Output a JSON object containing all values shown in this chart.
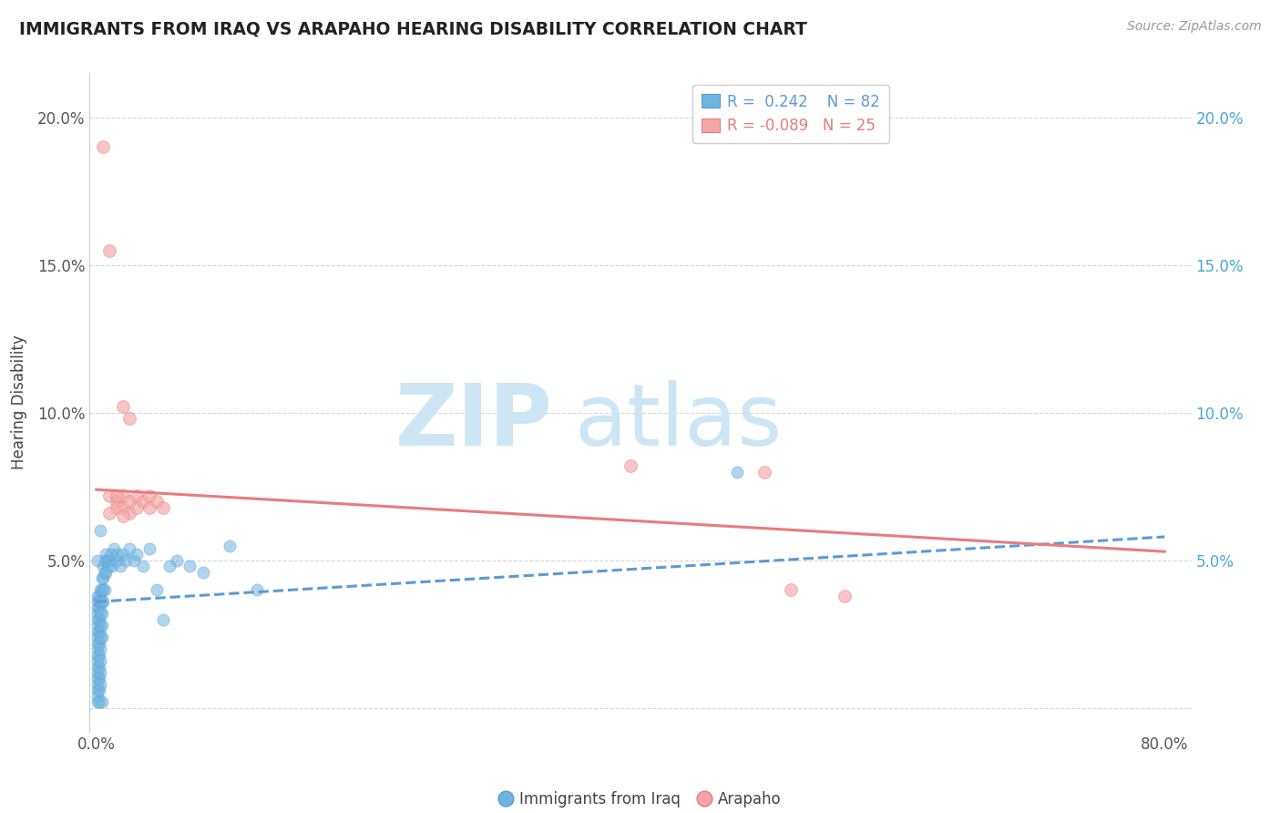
{
  "title": "IMMIGRANTS FROM IRAQ VS ARAPAHO HEARING DISABILITY CORRELATION CHART",
  "source": "Source: ZipAtlas.com",
  "ylabel": "Hearing Disability",
  "legend_iraq_R": "0.242",
  "legend_iraq_N": "82",
  "legend_arapaho_R": "-0.089",
  "legend_arapaho_N": "25",
  "iraq_color": "#6eb5e0",
  "arapaho_color": "#f4a6a6",
  "iraq_trendline_color": "#5b9bd5",
  "arapaho_trendline_color": "#e87c7c",
  "watermark_zip": "ZIP",
  "watermark_atlas": "atlas",
  "watermark_color": "#cce6f4",
  "background_color": "#ffffff",
  "iraq_scatter": [
    [
      0.001,
      0.038
    ],
    [
      0.001,
      0.036
    ],
    [
      0.001,
      0.034
    ],
    [
      0.001,
      0.032
    ],
    [
      0.001,
      0.03
    ],
    [
      0.001,
      0.028
    ],
    [
      0.001,
      0.026
    ],
    [
      0.001,
      0.024
    ],
    [
      0.001,
      0.022
    ],
    [
      0.001,
      0.02
    ],
    [
      0.001,
      0.018
    ],
    [
      0.001,
      0.016
    ],
    [
      0.001,
      0.014
    ],
    [
      0.001,
      0.012
    ],
    [
      0.001,
      0.01
    ],
    [
      0.001,
      0.008
    ],
    [
      0.001,
      0.006
    ],
    [
      0.001,
      0.004
    ],
    [
      0.002,
      0.038
    ],
    [
      0.002,
      0.036
    ],
    [
      0.002,
      0.034
    ],
    [
      0.002,
      0.03
    ],
    [
      0.002,
      0.026
    ],
    [
      0.002,
      0.022
    ],
    [
      0.002,
      0.018
    ],
    [
      0.002,
      0.014
    ],
    [
      0.002,
      0.01
    ],
    [
      0.002,
      0.006
    ],
    [
      0.003,
      0.04
    ],
    [
      0.003,
      0.036
    ],
    [
      0.003,
      0.032
    ],
    [
      0.003,
      0.028
    ],
    [
      0.003,
      0.024
    ],
    [
      0.003,
      0.02
    ],
    [
      0.003,
      0.016
    ],
    [
      0.003,
      0.012
    ],
    [
      0.003,
      0.008
    ],
    [
      0.004,
      0.044
    ],
    [
      0.004,
      0.04
    ],
    [
      0.004,
      0.036
    ],
    [
      0.004,
      0.032
    ],
    [
      0.004,
      0.028
    ],
    [
      0.004,
      0.024
    ],
    [
      0.005,
      0.048
    ],
    [
      0.005,
      0.044
    ],
    [
      0.005,
      0.04
    ],
    [
      0.005,
      0.036
    ],
    [
      0.006,
      0.05
    ],
    [
      0.006,
      0.046
    ],
    [
      0.006,
      0.04
    ],
    [
      0.007,
      0.052
    ],
    [
      0.007,
      0.046
    ],
    [
      0.008,
      0.05
    ],
    [
      0.009,
      0.048
    ],
    [
      0.01,
      0.05
    ],
    [
      0.011,
      0.052
    ],
    [
      0.012,
      0.048
    ],
    [
      0.013,
      0.054
    ],
    [
      0.015,
      0.05
    ],
    [
      0.016,
      0.052
    ],
    [
      0.018,
      0.048
    ],
    [
      0.02,
      0.052
    ],
    [
      0.022,
      0.05
    ],
    [
      0.025,
      0.054
    ],
    [
      0.028,
      0.05
    ],
    [
      0.03,
      0.052
    ],
    [
      0.035,
      0.048
    ],
    [
      0.04,
      0.054
    ],
    [
      0.045,
      0.04
    ],
    [
      0.05,
      0.03
    ],
    [
      0.06,
      0.05
    ],
    [
      0.07,
      0.048
    ],
    [
      0.08,
      0.046
    ],
    [
      0.1,
      0.055
    ],
    [
      0.12,
      0.04
    ],
    [
      0.001,
      0.002
    ],
    [
      0.48,
      0.08
    ],
    [
      0.001,
      0.05
    ],
    [
      0.055,
      0.048
    ],
    [
      0.002,
      0.002
    ],
    [
      0.003,
      0.06
    ],
    [
      0.004,
      0.002
    ]
  ],
  "arapaho_scatter": [
    [
      0.005,
      0.19
    ],
    [
      0.01,
      0.155
    ],
    [
      0.02,
      0.102
    ],
    [
      0.025,
      0.098
    ],
    [
      0.01,
      0.072
    ],
    [
      0.015,
      0.07
    ],
    [
      0.015,
      0.068
    ],
    [
      0.02,
      0.072
    ],
    [
      0.02,
      0.068
    ],
    [
      0.025,
      0.07
    ],
    [
      0.025,
      0.066
    ],
    [
      0.03,
      0.072
    ],
    [
      0.03,
      0.068
    ],
    [
      0.035,
      0.07
    ],
    [
      0.04,
      0.068
    ],
    [
      0.04,
      0.072
    ],
    [
      0.045,
      0.07
    ],
    [
      0.05,
      0.068
    ],
    [
      0.4,
      0.082
    ],
    [
      0.5,
      0.08
    ],
    [
      0.52,
      0.04
    ],
    [
      0.56,
      0.038
    ],
    [
      0.01,
      0.066
    ],
    [
      0.015,
      0.072
    ],
    [
      0.02,
      0.065
    ]
  ],
  "iraq_trend_x": [
    0.0,
    0.8
  ],
  "iraq_trend_y": [
    0.036,
    0.058
  ],
  "arapaho_trend_x": [
    0.0,
    0.8
  ],
  "arapaho_trend_y": [
    0.074,
    0.053
  ],
  "xlim": [
    -0.005,
    0.82
  ],
  "ylim": [
    -0.008,
    0.215
  ],
  "x_tick_positions": [
    0.0,
    0.1,
    0.2,
    0.3,
    0.4,
    0.5,
    0.6,
    0.7,
    0.8
  ],
  "x_tick_labels": [
    "0.0%",
    "",
    "",
    "",
    "",
    "",
    "",
    "",
    "80.0%"
  ],
  "y_tick_positions": [
    0.0,
    0.05,
    0.1,
    0.15,
    0.2
  ],
  "y_tick_labels_left": [
    "",
    "5.0%",
    "10.0%",
    "15.0%",
    "20.0%"
  ],
  "y_tick_labels_right": [
    "",
    "5.0%",
    "10.0%",
    "15.0%",
    "20.0%"
  ]
}
